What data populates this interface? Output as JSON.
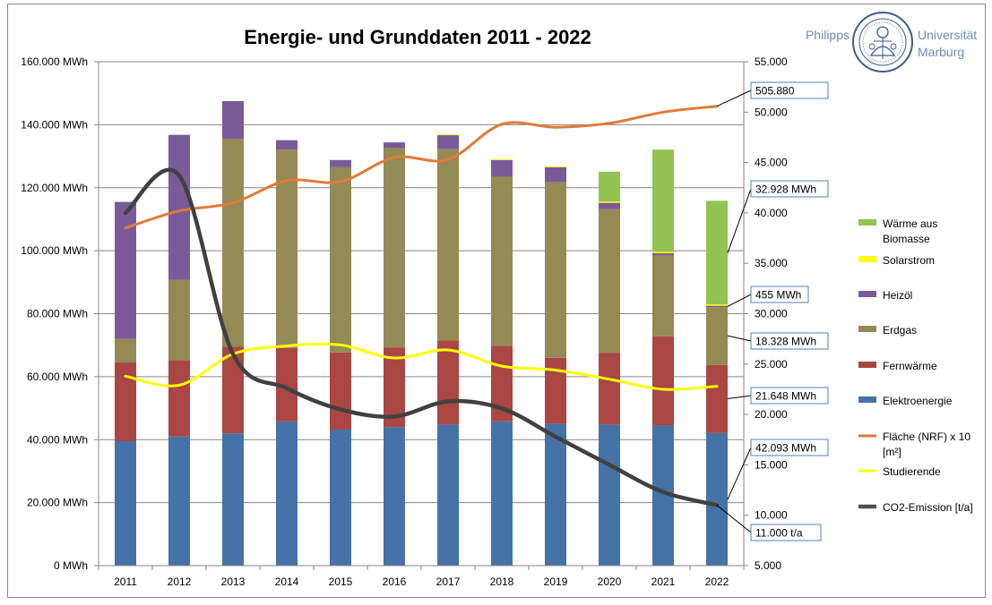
{
  "chart_data": {
    "type": "bar",
    "stacked": true,
    "title": "Energie- und Grunddaten 2011 - 2022",
    "categories": [
      "2011",
      "2012",
      "2013",
      "2014",
      "2015",
      "2016",
      "2017",
      "2018",
      "2019",
      "2020",
      "2021",
      "2022"
    ],
    "y_left": {
      "min": 0,
      "max": 160000,
      "step": 20000,
      "tick_labels": [
        "0 MWh",
        "20.000 MWh",
        "40.000 MWh",
        "60.000 MWh",
        "80.000 MWh",
        "100.000 MWh",
        "120.000 MWh",
        "140.000 MWh",
        "160.000 MWh"
      ]
    },
    "y_right": {
      "min": 5000,
      "max": 55000,
      "step": 5000,
      "tick_labels": [
        "5.000",
        "10.000",
        "15.000",
        "20.000",
        "25.000",
        "30.000",
        "35.000",
        "40.000",
        "45.000",
        "50.000",
        "55.000"
      ]
    },
    "grid": true,
    "legend_position": "right",
    "bar_series": [
      {
        "name": "Elektroenergie",
        "color": "#4572a7",
        "values": [
          39500,
          41000,
          42000,
          45800,
          43200,
          44000,
          44800,
          45800,
          45000,
          44800,
          44500,
          42093
        ]
      },
      {
        "name": "Fernwärme",
        "color": "#aa4643",
        "values": [
          25000,
          24300,
          27500,
          23300,
          24500,
          25300,
          26700,
          24000,
          21000,
          22700,
          28300,
          21648
        ]
      },
      {
        "name": "Erdgas",
        "color": "#948a54",
        "values": [
          7500,
          25500,
          66000,
          63000,
          58800,
          63300,
          60700,
          53700,
          55800,
          45700,
          25700,
          18328
        ]
      },
      {
        "name": "Heizöl",
        "color": "#7b5a99",
        "values": [
          43500,
          46000,
          12000,
          3000,
          2300,
          1800,
          4500,
          5300,
          4700,
          2000,
          700,
          455
        ]
      },
      {
        "name": "Solarstrom",
        "color": "#ffff00",
        "values": [
          0,
          0,
          0,
          0,
          0,
          0,
          200,
          300,
          300,
          400,
          400,
          400
        ]
      },
      {
        "name": "Wärme aus Biomasse",
        "color": "#92c353",
        "values": [
          0,
          0,
          0,
          0,
          0,
          0,
          0,
          0,
          0,
          9500,
          32500,
          32928
        ]
      }
    ],
    "line_series": [
      {
        "name": "Fläche (NRF) x 10 [m²]",
        "axis": "right",
        "color": "#e07b39",
        "values": [
          38500,
          40200,
          41000,
          43200,
          43100,
          45500,
          45300,
          48800,
          48500,
          48900,
          50000,
          50588
        ]
      },
      {
        "name": "Studierende",
        "axis": "right",
        "color": "#ffff00",
        "values": [
          23800,
          22900,
          26000,
          26800,
          26900,
          25600,
          26400,
          24800,
          24400,
          23500,
          22500,
          22800
        ]
      },
      {
        "name": "CO2-Emission [t/a]",
        "axis": "right",
        "color": "#404040",
        "values": [
          40000,
          43700,
          26000,
          22600,
          20500,
          19800,
          21300,
          20600,
          17800,
          15000,
          12300,
          11000
        ]
      }
    ],
    "legend": [
      {
        "label": "Wärme aus Biomasse",
        "kind": "bar",
        "color": "#92c353"
      },
      {
        "label": "Solarstrom",
        "kind": "bar",
        "color": "#ffff00"
      },
      {
        "label": "Heizöl",
        "kind": "bar",
        "color": "#7b5a99"
      },
      {
        "label": "Erdgas",
        "kind": "bar",
        "color": "#948a54"
      },
      {
        "label": "Fernwärme",
        "kind": "bar",
        "color": "#aa4643"
      },
      {
        "label": "Elektroenergie",
        "kind": "bar",
        "color": "#4572a7"
      },
      {
        "label": "Fläche (NRF) x 10 [m²]",
        "kind": "line",
        "color": "#e07b39"
      },
      {
        "label": "Studierende",
        "kind": "line",
        "color": "#ffff00"
      },
      {
        "label": "CO2-Emission [t/a]",
        "kind": "line",
        "color": "#505050"
      }
    ],
    "callouts": [
      {
        "text": "505.880",
        "target_series": "Fläche (NRF) x 10 [m²]",
        "axis": "right",
        "target_value": 50588
      },
      {
        "text": "32.928 MWh",
        "target_series": "Wärme aus Biomasse",
        "axis": "left",
        "target_value": 99300
      },
      {
        "text": "455 MWh",
        "target_series": "Heizöl",
        "axis": "left",
        "target_value": 82300
      },
      {
        "text": "18.328 MWh",
        "target_series": "Erdgas",
        "axis": "left",
        "target_value": 73000
      },
      {
        "text": "21.648 MWh",
        "target_series": "Fernwärme",
        "axis": "left",
        "target_value": 53000
      },
      {
        "text": "42.093 MWh",
        "target_series": "Elektroenergie",
        "axis": "left",
        "target_value": 21000
      },
      {
        "text": "11.000 t/a",
        "target_series": "CO2-Emission [t/a]",
        "axis": "right",
        "target_value": 11000
      }
    ]
  },
  "logo": {
    "left_text": "Philipps",
    "right_text_1": "Universität",
    "right_text_2": "Marburg",
    "color": "#6e8db5"
  }
}
